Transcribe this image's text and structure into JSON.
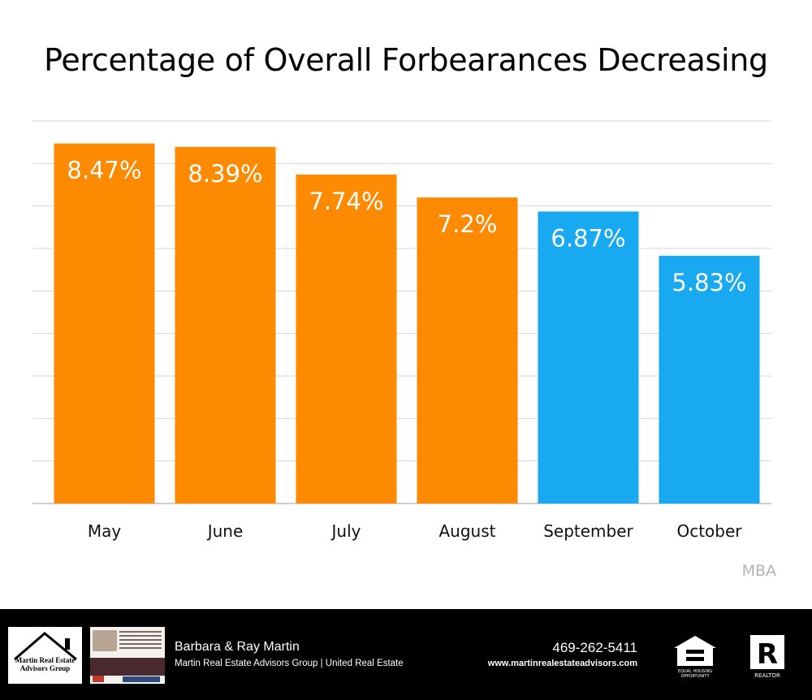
{
  "chart_data": {
    "type": "bar",
    "title": "Percentage of Overall Forbearances Decreasing",
    "categories": [
      "May",
      "June",
      "July",
      "August",
      "September",
      "October"
    ],
    "values": [
      8.47,
      8.39,
      7.74,
      7.2,
      6.87,
      5.83
    ],
    "labels": [
      "8.47%",
      "8.39%",
      "7.74%",
      "7.2%",
      "6.87%",
      "5.83%"
    ],
    "bar_colors": [
      "#fd8a00",
      "#fd8a00",
      "#fd8a00",
      "#fd8a00",
      "#18a9f0",
      "#18a9f0"
    ],
    "ylim": [
      0,
      9
    ],
    "grid": true,
    "xlabel": "",
    "ylabel": ""
  },
  "source": "MBA",
  "footer": {
    "logo_text": "Martin Real Estate Advisors Group",
    "name": "Barbara & Ray Martin",
    "company": "Martin Real Estate Advisors Group | United Real Estate",
    "phone": "469-262-5411",
    "website": "www.martinrealestateadvisors.com",
    "eho_icon": "equal-housing-opportunity-icon",
    "realtor_icon": "realtor-icon",
    "eho_text": "EQUAL HOUSING OPPORTUNITY",
    "realtor_text": "REALTOR®"
  }
}
